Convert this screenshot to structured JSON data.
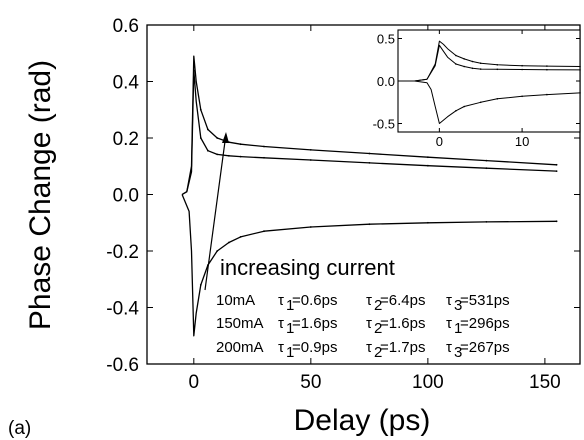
{
  "chart_data": [
    {
      "type": "line",
      "panel_label": "(a)",
      "xlabel": "Delay (ps)",
      "ylabel": "Phase Change (rad)",
      "xlim": [
        -20,
        165
      ],
      "ylim": [
        -0.6,
        0.6
      ],
      "xticks": [
        "0",
        "50",
        "100",
        "150"
      ],
      "xtick_values": [
        0,
        50,
        100,
        150
      ],
      "yticks": [
        "-0.6",
        "-0.4",
        "-0.2",
        "0.0",
        "0.2",
        "0.4",
        "0.6"
      ],
      "ytick_values": [
        -0.6,
        -0.4,
        -0.2,
        0.0,
        0.2,
        0.4,
        0.6
      ],
      "grid": false,
      "legend": "none",
      "series": [
        {
          "color": "#000000",
          "x": [
            -5,
            -3,
            -1,
            0,
            1,
            3,
            6,
            10,
            15,
            20,
            30,
            50,
            75,
            100,
            125,
            155
          ],
          "y": [
            0.0,
            0.01,
            0.1,
            0.49,
            0.4,
            0.3,
            0.23,
            0.2,
            0.185,
            0.178,
            0.17,
            0.158,
            0.145,
            0.132,
            0.12,
            0.105
          ]
        },
        {
          "color": "#000000",
          "x": [
            -5,
            -3,
            -1,
            0,
            1,
            3,
            6,
            10,
            15,
            20,
            30,
            50,
            75,
            100,
            125,
            155
          ],
          "y": [
            0.0,
            0.01,
            0.08,
            0.44,
            0.33,
            0.2,
            0.155,
            0.142,
            0.137,
            0.134,
            0.13,
            0.122,
            0.112,
            0.102,
            0.093,
            0.083
          ]
        },
        {
          "color": "#000000",
          "x": [
            -5,
            -2,
            -1,
            0,
            1,
            3,
            6,
            10,
            15,
            20,
            30,
            50,
            75,
            100,
            125,
            155
          ],
          "y": [
            0.0,
            -0.06,
            -0.2,
            -0.5,
            -0.42,
            -0.32,
            -0.25,
            -0.2,
            -0.17,
            -0.15,
            -0.13,
            -0.115,
            -0.105,
            -0.1,
            -0.097,
            -0.095
          ]
        }
      ],
      "annotations": {
        "title_text": "increasing current",
        "rows": [
          {
            "current": "10mA",
            "a_sym": "τ",
            "a_sub": "1",
            "a_val": "=0.6ps",
            "b_sym": "τ",
            "b_sub": "2",
            "b_val": "=6.4ps",
            "c_sym": "τ",
            "c_sub": "3",
            "c_val": "=531ps"
          },
          {
            "current": "150mA",
            "a_sym": "τ",
            "a_sub": "1",
            "a_val": "=1.6ps",
            "b_sym": "τ",
            "b_sub": "2",
            "b_val": "=1.6ps",
            "c_sym": "τ",
            "c_sub": "1",
            "c_val": "=296ps"
          },
          {
            "current": "200mA",
            "a_sym": "τ",
            "a_sub": "1",
            "a_val": "=0.9ps",
            "b_sym": "τ",
            "b_sub": "2",
            "b_val": "=1.7ps",
            "c_sym": "τ",
            "c_sub": "3",
            "c_val": "=267ps"
          }
        ]
      }
    },
    {
      "type": "line",
      "role": "inset",
      "xlim": [
        -5,
        17
      ],
      "ylim": [
        -0.6,
        0.6
      ],
      "xticks": [
        "0",
        "10"
      ],
      "xtick_values": [
        0,
        10
      ],
      "yticks": [
        "-0.5",
        "0.0",
        "0.5"
      ],
      "ytick_values": [
        -0.5,
        0.0,
        0.5
      ],
      "grid": false,
      "series": [
        {
          "color": "#000000",
          "x": [
            -5,
            -3,
            -1.5,
            -0.5,
            0,
            0.5,
            1,
            2,
            3,
            4,
            5,
            7,
            10,
            13,
            17
          ],
          "y": [
            0.0,
            0.0,
            0.02,
            0.2,
            0.47,
            0.43,
            0.38,
            0.3,
            0.26,
            0.23,
            0.21,
            0.19,
            0.18,
            0.175,
            0.17
          ]
        },
        {
          "color": "#000000",
          "x": [
            -5,
            -3,
            -1.5,
            -0.5,
            0,
            0.5,
            1,
            2,
            3,
            4,
            5,
            7,
            10,
            13,
            17
          ],
          "y": [
            0.0,
            0.0,
            0.02,
            0.18,
            0.42,
            0.35,
            0.28,
            0.2,
            0.17,
            0.15,
            0.14,
            0.138,
            0.135,
            0.133,
            0.13
          ]
        },
        {
          "color": "#000000",
          "x": [
            -5,
            -3,
            -1.5,
            -1,
            -0.5,
            0,
            0.5,
            1,
            2,
            3,
            5,
            7,
            10,
            13,
            17
          ],
          "y": [
            0.0,
            0.0,
            -0.02,
            -0.1,
            -0.3,
            -0.5,
            -0.46,
            -0.42,
            -0.35,
            -0.3,
            -0.25,
            -0.21,
            -0.18,
            -0.16,
            -0.14
          ]
        }
      ]
    }
  ]
}
